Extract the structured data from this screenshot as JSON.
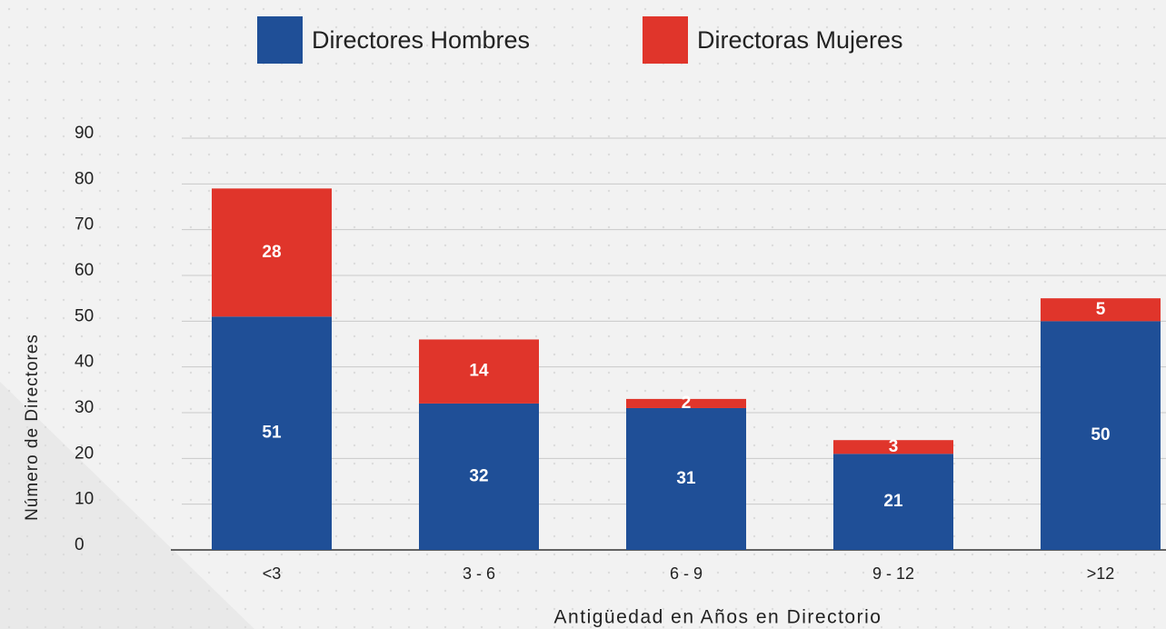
{
  "chart_data": {
    "type": "stacked_bar",
    "categories": [
      "<3",
      "3 - 6",
      "6 - 9",
      "9 - 12",
      ">12"
    ],
    "series": [
      {
        "name": "Directores Hombres",
        "color": "#1f4f97",
        "values": [
          51,
          32,
          31,
          21,
          50
        ]
      },
      {
        "name": "Directoras Mujeres",
        "color": "#e0352b",
        "values": [
          28,
          14,
          2,
          3,
          5
        ]
      }
    ],
    "x_label": "Antigüedad en Años en Directorio",
    "y_label": "Número de Directores",
    "ylim": [
      0,
      90
    ],
    "yticks": [
      0,
      10,
      20,
      30,
      40,
      50,
      60,
      70,
      80,
      90
    ],
    "grid": true,
    "legend": "top"
  }
}
